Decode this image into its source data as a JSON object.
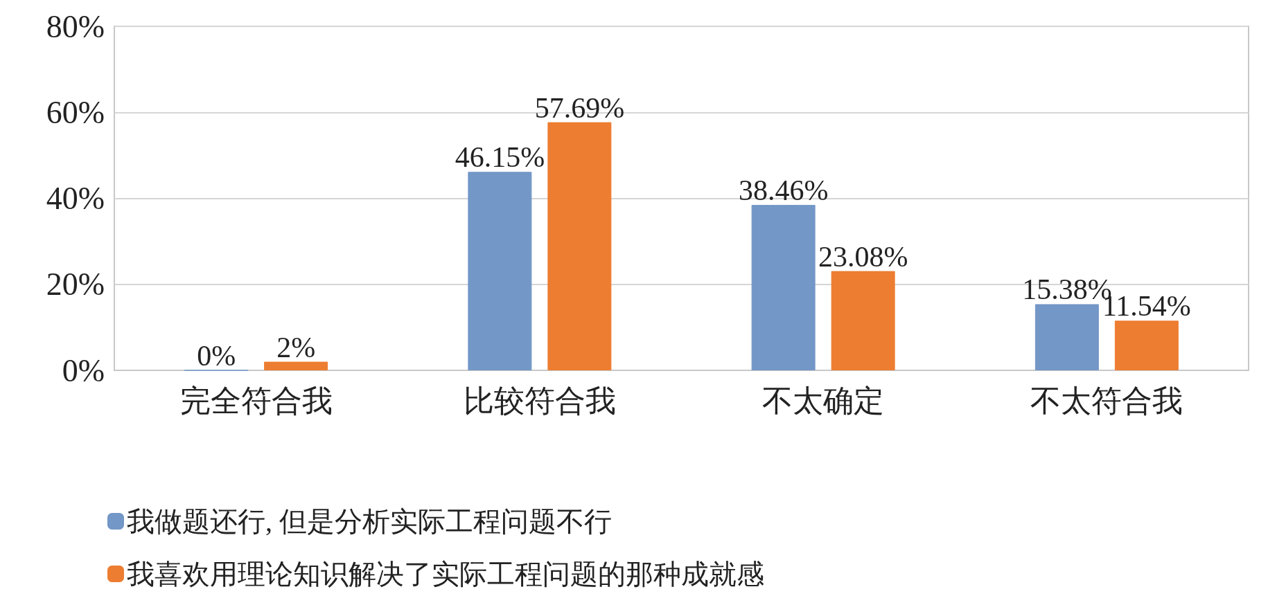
{
  "chart_data": {
    "type": "bar",
    "categories": [
      "完全符合我",
      "比较符合我",
      "不太确定",
      "不太符合我"
    ],
    "series": [
      {
        "name": "我做题还行, 但是分析实际工程问题不行",
        "color": "#7397c7",
        "values": [
          0,
          46.15,
          38.46,
          15.38
        ],
        "value_labels": [
          "0%",
          "46.15%",
          "38.46%",
          "15.38%"
        ]
      },
      {
        "name": "我喜欢用理论知识解决了实际工程问题的那种成就感",
        "color": "#ed7d31",
        "values": [
          2,
          57.69,
          23.08,
          11.54
        ],
        "value_labels": [
          "2%",
          "57.69%",
          "23.08%",
          "11.54%"
        ]
      }
    ],
    "ylim": [
      0,
      80
    ],
    "yticks": [
      {
        "value": 0,
        "label": "0%"
      },
      {
        "value": 20,
        "label": "20%"
      },
      {
        "value": 40,
        "label": "40%"
      },
      {
        "value": 60,
        "label": "60%"
      },
      {
        "value": 80,
        "label": "80%"
      }
    ],
    "grid": "y",
    "legend": "bottom"
  }
}
